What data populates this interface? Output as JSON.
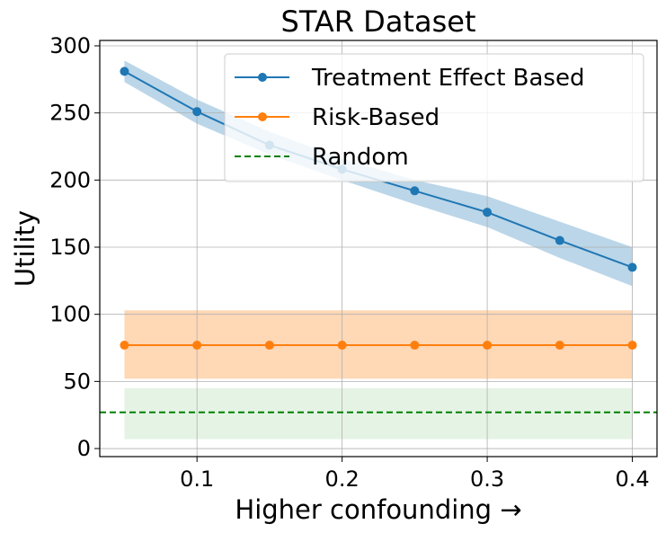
{
  "chart_data": {
    "type": "line",
    "title": "STAR Dataset",
    "xlabel": "Higher confounding →",
    "ylabel": "Utility",
    "xlim": [
      0.033,
      0.417
    ],
    "ylim": [
      -6,
      304
    ],
    "xticks": [
      0.1,
      0.2,
      0.3,
      0.4
    ],
    "xtick_labels": [
      "0.1",
      "0.2",
      "0.3",
      "0.4"
    ],
    "yticks": [
      0,
      50,
      100,
      150,
      200,
      250,
      300
    ],
    "ytick_labels": [
      "0",
      "50",
      "100",
      "150",
      "200",
      "250",
      "300"
    ],
    "grid": true,
    "legend_position": "top-right",
    "x": [
      0.05,
      0.1,
      0.15,
      0.2,
      0.25,
      0.3,
      0.35,
      0.4
    ],
    "series": [
      {
        "name": "Treatment Effect Based",
        "color": "#1f77b4",
        "style": "solid-marker",
        "values": [
          281,
          251,
          226,
          208,
          192,
          176,
          155,
          135
        ],
        "band_lower": [
          273,
          242,
          219,
          200,
          182,
          165,
          142,
          121
        ],
        "band_upper": [
          289,
          260,
          236,
          216,
          200,
          188,
          169,
          150
        ]
      },
      {
        "name": "Risk-Based",
        "color": "#ff7f0e",
        "style": "solid-marker",
        "values": [
          77,
          77,
          77,
          77,
          77,
          77,
          77,
          77
        ],
        "band_lower": [
          52,
          52,
          52,
          52,
          52,
          52,
          52,
          52
        ],
        "band_upper": [
          103,
          103,
          103,
          103,
          103,
          103,
          103,
          103
        ]
      },
      {
        "name": "Random",
        "color": "#2ca02c",
        "line_color": "#008000",
        "style": "dashed",
        "values": [
          27,
          27,
          27,
          27,
          27,
          27,
          27,
          27
        ],
        "band_lower": [
          7,
          7,
          7,
          7,
          7,
          7,
          7,
          7
        ],
        "band_upper": [
          45,
          45,
          45,
          45,
          45,
          45,
          45,
          45
        ]
      }
    ]
  }
}
